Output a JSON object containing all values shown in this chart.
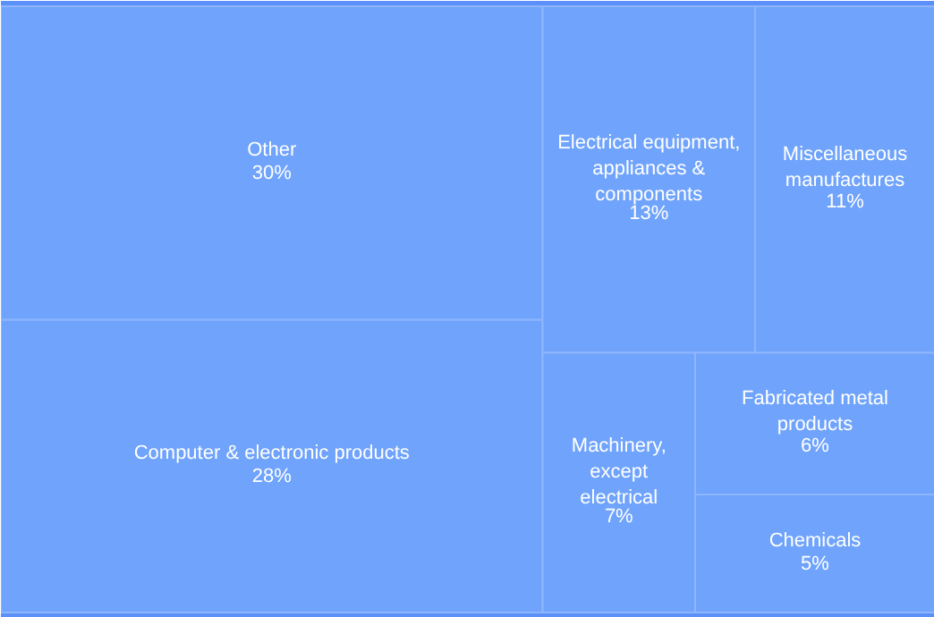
{
  "chart_data": {
    "type": "other",
    "categories": [
      "Other",
      "Computer & electronic products",
      "Electrical equipment, appliances & components",
      "Miscellaneous manufactures",
      "Machinery, except electrical",
      "Fabricated metal products",
      "Chemicals"
    ],
    "values": [
      30,
      28,
      13,
      11,
      7,
      6,
      5
    ],
    "value_labels": [
      "30%",
      "28%",
      "13%",
      "11%",
      "7%",
      "6%",
      "5%"
    ],
    "color": "#6fa3fc"
  }
}
